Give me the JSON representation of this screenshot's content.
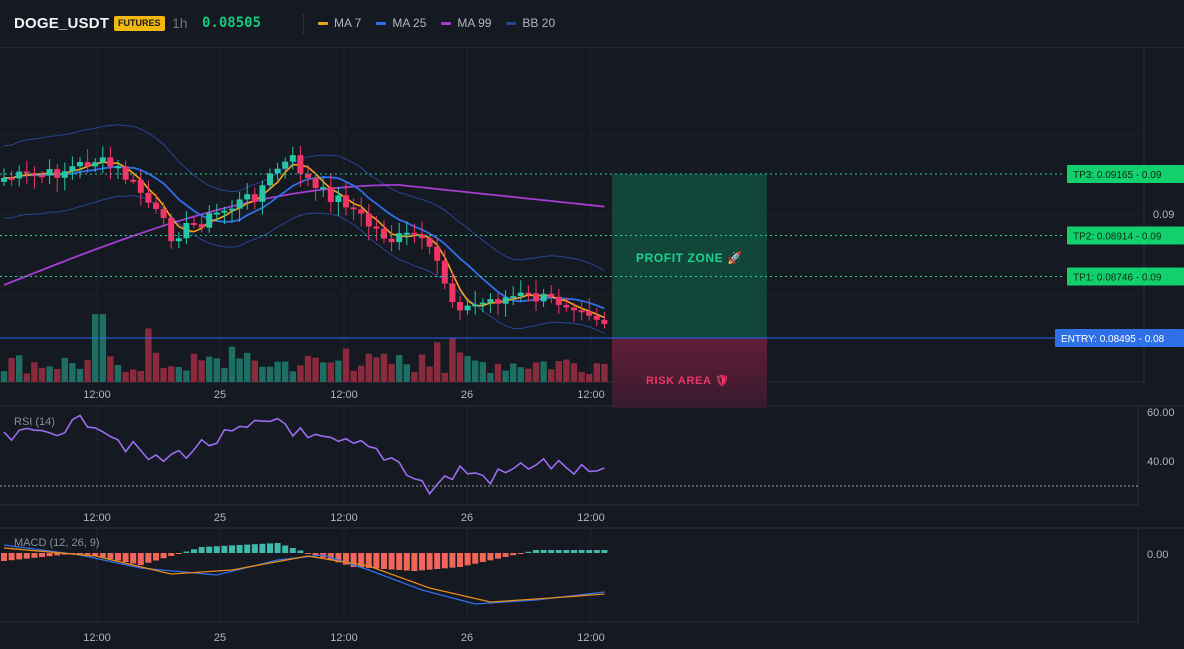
{
  "header": {
    "symbol": "DOGE_USDT",
    "badge": "FUTURES",
    "timeframe": "1h",
    "price": "0.08505",
    "legend": [
      {
        "label": "MA 7",
        "color": "#f7a21b"
      },
      {
        "label": "MA 25",
        "color": "#2f6fe8"
      },
      {
        "label": "MA 99",
        "color": "#a43ed1"
      },
      {
        "label": "BB 20",
        "color": "#28458f"
      }
    ]
  },
  "price_axis": {
    "label": "0.09"
  },
  "x_ticks": [
    "12:00",
    "25",
    "12:00",
    "26",
    "12:00"
  ],
  "levels": [
    {
      "name": "TP3",
      "label": "TP3: 0.09165",
      "axis": "0.09",
      "value": 0.09165,
      "type": "tp"
    },
    {
      "name": "TP2",
      "label": "TP2: 0.08914",
      "axis": "0.09",
      "value": 0.08914,
      "type": "tp"
    },
    {
      "name": "TP1",
      "label": "TP1: 0.08746",
      "axis": "0.09",
      "value": 0.08746,
      "type": "tp"
    },
    {
      "name": "ENTRY",
      "label": "ENTRY: 0.08495",
      "axis": "0.08",
      "value": 0.08495,
      "type": "entry"
    }
  ],
  "zones": {
    "profit": "PROFIT ZONE 🚀",
    "risk": "RISK AREA 🛡"
  },
  "rsi": {
    "label": "RSI (14)",
    "axis_labels": [
      "60.00",
      "40.00"
    ],
    "color": "#9b6cf0"
  },
  "macd": {
    "label": "MACD (12, 26, 9)",
    "axis_label": "0.00"
  },
  "colors": {
    "up": "#26c6a6",
    "down": "#f23467",
    "background": "#151922"
  }
}
